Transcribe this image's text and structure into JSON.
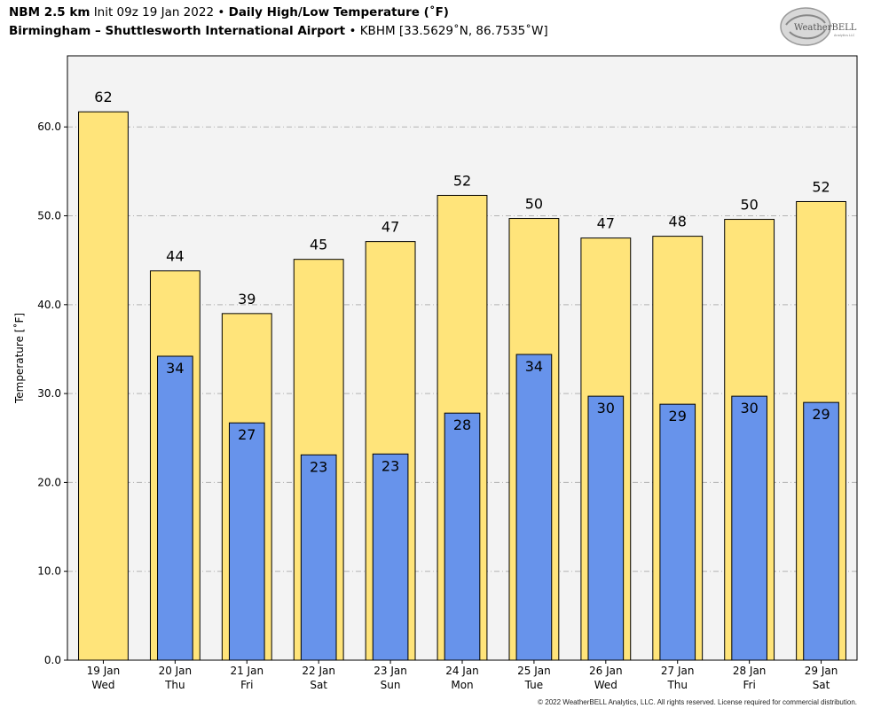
{
  "header": {
    "model": "NBM 2.5 km",
    "init": "Init 09z 19 Jan 2022",
    "bullet": "•",
    "product": "Daily High/Low Temperature (˚F)",
    "station_name": "Birmingham – Shuttlesworth International Airport",
    "station_info": "KBHM [33.5629˚N, 86.7535˚W]"
  },
  "logo": {
    "text_main": "WeatherBELL",
    "text_sub": "Analytics LLC"
  },
  "copyright": "© 2022 WeatherBELL Analytics, LLC. All rights reserved. License required for commercial distribution.",
  "colors": {
    "high_bar": "#ffe47a",
    "low_bar": "#6793eb",
    "plot_bg": "#f3f3f3",
    "grid": "#b3b3b3"
  },
  "chart_data": {
    "type": "bar",
    "ylabel": "Temperature [˚F]",
    "ylim": [
      0,
      68
    ],
    "yticks": [
      "0.0",
      "10.0",
      "20.0",
      "30.0",
      "40.0",
      "50.0",
      "60.0"
    ],
    "grid": "horizontal dash-dot",
    "categories": [
      {
        "date": "19 Jan",
        "day": "Wed"
      },
      {
        "date": "20 Jan",
        "day": "Thu"
      },
      {
        "date": "21 Jan",
        "day": "Fri"
      },
      {
        "date": "22 Jan",
        "day": "Sat"
      },
      {
        "date": "23 Jan",
        "day": "Sun"
      },
      {
        "date": "24 Jan",
        "day": "Mon"
      },
      {
        "date": "25 Jan",
        "day": "Tue"
      },
      {
        "date": "26 Jan",
        "day": "Wed"
      },
      {
        "date": "27 Jan",
        "day": "Thu"
      },
      {
        "date": "28 Jan",
        "day": "Fri"
      },
      {
        "date": "29 Jan",
        "day": "Sat"
      }
    ],
    "series": [
      {
        "values": [
          61.7,
          43.8,
          39.0,
          45.1,
          47.1,
          52.3,
          49.7,
          47.5,
          47.7,
          49.6,
          51.6
        ],
        "labels": [
          "62",
          "44",
          "39",
          "45",
          "47",
          "52",
          "50",
          "47",
          "48",
          "50",
          "52"
        ]
      },
      {
        "values": [
          null,
          34.2,
          26.7,
          23.1,
          23.2,
          27.8,
          34.4,
          29.7,
          28.8,
          29.7,
          29.0
        ],
        "labels": [
          null,
          "34",
          "27",
          "23",
          "23",
          "28",
          "34",
          "30",
          "29",
          "30",
          "29"
        ]
      }
    ]
  }
}
